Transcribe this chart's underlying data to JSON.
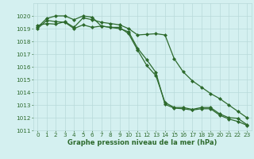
{
  "x": [
    0,
    1,
    2,
    3,
    4,
    5,
    6,
    7,
    8,
    9,
    10,
    11,
    12,
    13,
    14,
    15,
    16,
    17,
    18,
    19,
    20,
    21,
    22,
    23
  ],
  "line1": [
    1019.1,
    1019.8,
    1020.0,
    1020.0,
    1019.7,
    1020.0,
    1019.9,
    1019.2,
    1019.1,
    1019.1,
    1018.6,
    1017.3,
    1016.1,
    1015.3,
    1013.2,
    1012.8,
    1012.8,
    1012.65,
    1012.8,
    1012.8,
    1012.3,
    1012.0,
    1011.95,
    1011.45
  ],
  "line2": [
    1019.25,
    1019.4,
    1019.35,
    1019.55,
    1019.1,
    1019.85,
    1019.7,
    1019.5,
    1019.4,
    1019.3,
    1019.0,
    1018.5,
    1018.55,
    1018.6,
    1018.5,
    1016.65,
    1015.6,
    1014.9,
    1014.4,
    1013.9,
    1013.5,
    1013.0,
    1012.5,
    1012.0
  ],
  "line3": [
    1019.0,
    1019.65,
    1019.55,
    1019.5,
    1019.0,
    1019.3,
    1019.1,
    1019.2,
    1019.1,
    1019.0,
    1018.75,
    1017.45,
    1016.55,
    1015.55,
    1013.05,
    1012.75,
    1012.7,
    1012.6,
    1012.7,
    1012.7,
    1012.2,
    1011.9,
    1011.7,
    1011.4
  ],
  "line_color": "#2d6a2d",
  "bg_color": "#d4f0f0",
  "grid_color": "#b8dada",
  "ylim": [
    1011,
    1021
  ],
  "yticks": [
    1011,
    1012,
    1013,
    1014,
    1015,
    1016,
    1017,
    1018,
    1019,
    1020
  ],
  "xlabel": "Graphe pression niveau de la mer (hPa)",
  "marker": "D",
  "marker_size": 2.0,
  "linewidth": 0.9,
  "tick_fontsize": 5.2,
  "xlabel_fontsize": 6.0
}
